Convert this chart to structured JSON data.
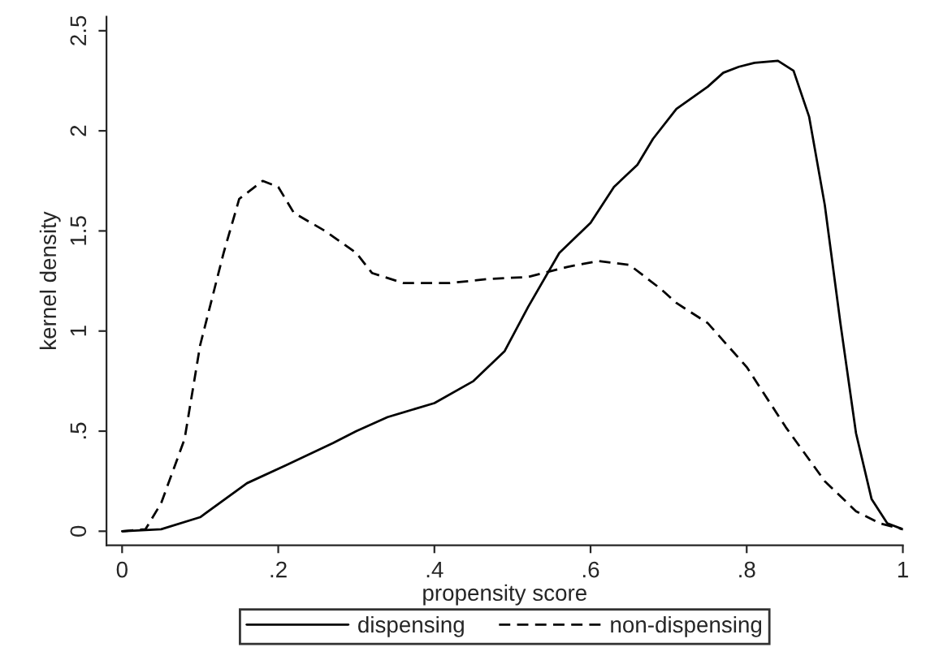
{
  "chart_data": {
    "type": "line",
    "xlabel": "propensity score",
    "ylabel": "kernel density",
    "xlim": [
      -0.02,
      1.0
    ],
    "ylim": [
      -0.07,
      2.57
    ],
    "xticks": [
      0,
      {
        "value": 0.2,
        "label": ".2"
      },
      {
        "value": 0.4,
        "label": ".4"
      },
      {
        "value": 0.6,
        "label": ".6"
      },
      {
        "value": 0.8,
        "label": ".8"
      },
      1
    ],
    "yticks": [
      0,
      {
        "value": 0.5,
        "label": ".5"
      },
      1,
      {
        "value": 1.5,
        "label": "1.5"
      },
      2,
      {
        "value": 2.5,
        "label": "2.5"
      }
    ],
    "grid": false,
    "legend": "bottom",
    "series": [
      {
        "name": "dispensing",
        "color": "#000000",
        "line_style": "solid",
        "x": [
          0,
          0.05,
          0.1,
          0.16,
          0.21,
          0.27,
          0.3,
          0.34,
          0.4,
          0.45,
          0.49,
          0.52,
          0.56,
          0.6,
          0.63,
          0.66,
          0.68,
          0.71,
          0.75,
          0.77,
          0.79,
          0.81,
          0.84,
          0.86,
          0.88,
          0.9,
          0.92,
          0.94,
          0.96,
          0.98,
          1.0
        ],
        "values": [
          0,
          0.01,
          0.07,
          0.24,
          0.33,
          0.44,
          0.5,
          0.57,
          0.64,
          0.75,
          0.9,
          1.12,
          1.39,
          1.54,
          1.72,
          1.83,
          1.96,
          2.11,
          2.22,
          2.29,
          2.32,
          2.34,
          2.35,
          2.3,
          2.07,
          1.63,
          1.04,
          0.49,
          0.16,
          0.04,
          0.01
        ]
      },
      {
        "name": "non-dispensing",
        "color": "#000000",
        "line_style": "dashed",
        "x": [
          0,
          0.03,
          0.05,
          0.08,
          0.1,
          0.13,
          0.15,
          0.18,
          0.2,
          0.22,
          0.26,
          0.3,
          0.32,
          0.36,
          0.42,
          0.47,
          0.52,
          0.57,
          0.61,
          0.65,
          0.69,
          0.71,
          0.75,
          0.8,
          0.85,
          0.9,
          0.94,
          0.97,
          1.0
        ],
        "values": [
          0,
          0.01,
          0.14,
          0.46,
          0.93,
          1.39,
          1.66,
          1.75,
          1.72,
          1.59,
          1.5,
          1.39,
          1.29,
          1.24,
          1.24,
          1.26,
          1.27,
          1.32,
          1.35,
          1.33,
          1.21,
          1.14,
          1.04,
          0.82,
          0.52,
          0.25,
          0.1,
          0.04,
          0.01
        ]
      }
    ]
  }
}
